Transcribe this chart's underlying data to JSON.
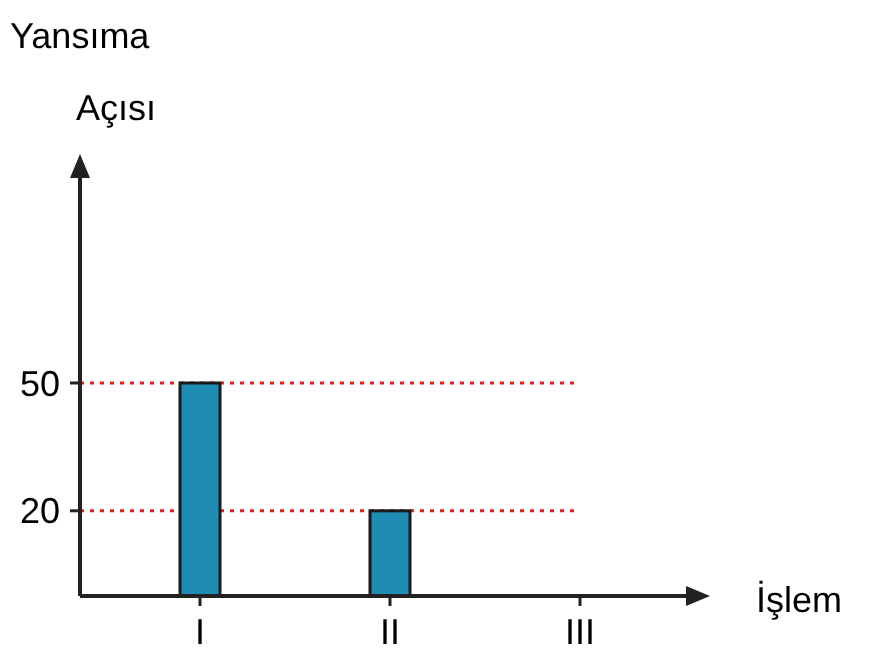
{
  "chart_data": {
    "type": "bar",
    "ylabel": "Yansıma Açısı",
    "xlabel": "İşlem",
    "categories": [
      "I",
      "II",
      "III"
    ],
    "values": [
      50,
      20,
      0
    ],
    "color": "#1f8cb4",
    "ylim": [
      0,
      100
    ],
    "yticks": [
      20,
      50
    ],
    "ref_lines": [
      {
        "axis": "y",
        "value": 50,
        "color": "#e02020",
        "line_style": "dotted"
      },
      {
        "axis": "y",
        "value": 20,
        "color": "#e02020",
        "line_style": "dotted"
      }
    ]
  }
}
